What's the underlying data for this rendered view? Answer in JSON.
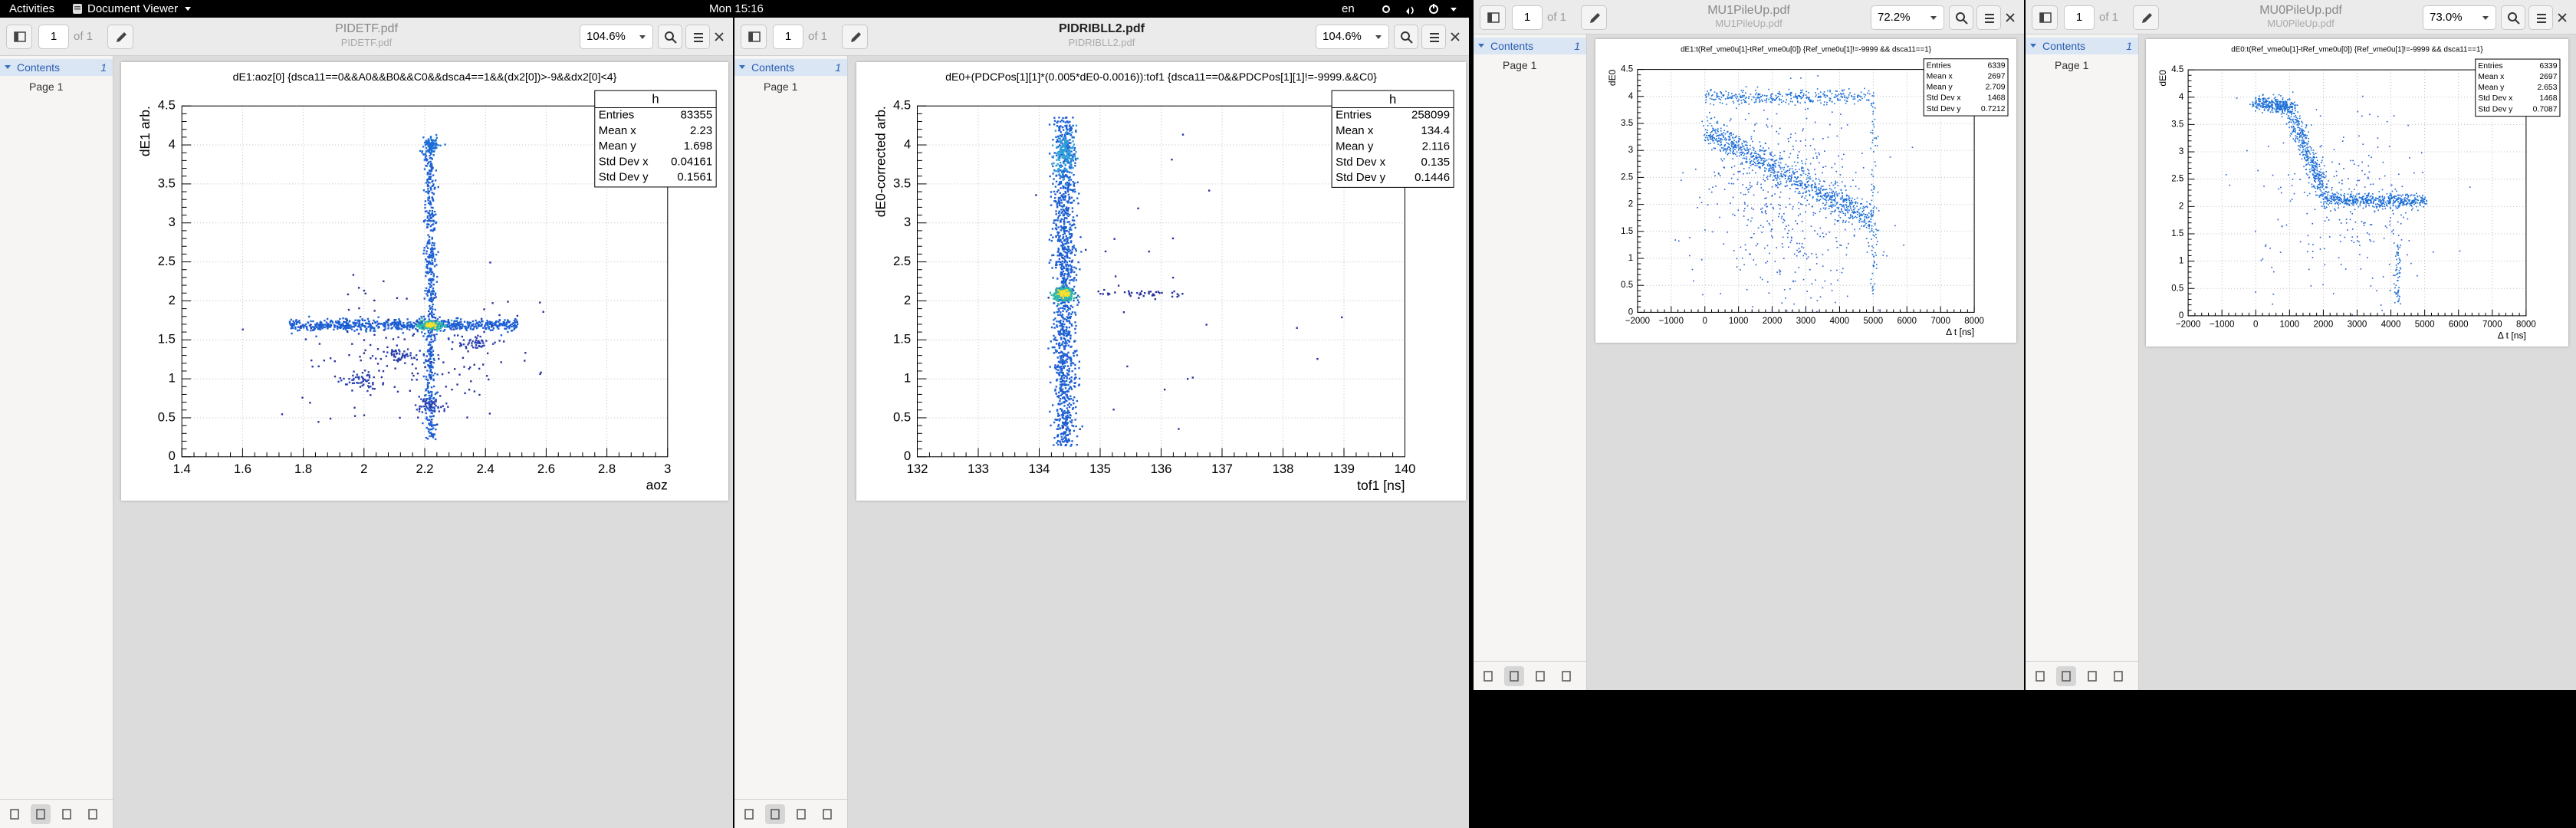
{
  "topbar": {
    "activities": "Activities",
    "app": "Document Viewer",
    "clock": "Mon 15:16",
    "lang": "en"
  },
  "windows": [
    {
      "title": "PIDETF.pdf",
      "subtitle": "PIDETF.pdf",
      "page": "1",
      "of": "of 1",
      "zoom": "104.6%",
      "contents": "Contents",
      "contents_num": "1",
      "page_item": "Page 1",
      "plot": {
        "title": "dE1:aoz[0] {dsca11==0&&A0&&B0&&C0&&dsca4==1&&(dx2[0])>-9&&dx2[0]<4}",
        "ylabel": "dE1 arb.",
        "xlabel": "aoz",
        "xticks": [
          "1.4",
          "1.6",
          "1.8",
          "2",
          "2.2",
          "2.4",
          "2.6",
          "2.8",
          "3"
        ],
        "yticks": [
          "0",
          "0.5",
          "1",
          "1.5",
          "2",
          "2.5",
          "3",
          "3.5",
          "4",
          "4.5"
        ],
        "stats": {
          "name": "h",
          "rows": [
            [
              "Entries",
              "83355"
            ],
            [
              "Mean x",
              "2.23"
            ],
            [
              "Mean y",
              "1.698"
            ],
            [
              "Std Dev x",
              "0.04161"
            ],
            [
              "Std Dev y",
              "0.1561"
            ]
          ]
        }
      }
    },
    {
      "title": "PIDRIBLL2.pdf",
      "subtitle": "PIDRIBLL2.pdf",
      "page": "1",
      "of": "of 1",
      "zoom": "104.6%",
      "contents": "Contents",
      "contents_num": "1",
      "page_item": "Page 1",
      "plot": {
        "title": "dE0+(PDCPos[1][1]*(0.005*dE0-0.0016)):tof1 {dsca11==0&&PDCPos[1][1]!=-9999.&&C0}",
        "ylabel": "dE0-corrected arb.",
        "xlabel": "tof1 [ns]",
        "xticks": [
          "132",
          "133",
          "134",
          "135",
          "136",
          "137",
          "138",
          "139",
          "140"
        ],
        "yticks": [
          "0",
          "0.5",
          "1",
          "1.5",
          "2",
          "2.5",
          "3",
          "3.5",
          "4",
          "4.5"
        ],
        "stats": {
          "name": "h",
          "rows": [
            [
              "Entries",
              "258099"
            ],
            [
              "Mean x",
              "134.4"
            ],
            [
              "Mean y",
              "2.116"
            ],
            [
              "Std Dev x",
              "0.135"
            ],
            [
              "Std Dev y",
              "0.1446"
            ]
          ]
        }
      }
    },
    {
      "title": "MU1PileUp.pdf",
      "subtitle": "MU1PileUp.pdf",
      "page": "1",
      "of": "of 1",
      "zoom": "72.2%",
      "contents": "Contents",
      "contents_num": "1",
      "page_item": "Page 1",
      "plot": {
        "title": "dE1:t(Ref_vme0u[1]-tRef_vme0u[0]) {Ref_vme0u[1]!=-9999 && dsca11==1}",
        "ylabel": "dE0",
        "xlabel": "Δ t [ns]",
        "xticks": [
          "−2000",
          "−1000",
          "0",
          "1000",
          "2000",
          "3000",
          "4000",
          "5000",
          "6000",
          "7000",
          "8000"
        ],
        "yticks": [
          "0",
          "0.5",
          "1",
          "1.5",
          "2",
          "2.5",
          "3",
          "3.5",
          "4",
          "4.5"
        ],
        "stats": {
          "rows": [
            [
              "Entries",
              "6339"
            ],
            [
              "Mean x",
              "2697"
            ],
            [
              "Mean y",
              "2.709"
            ],
            [
              "Std Dev x",
              "1468"
            ],
            [
              "Std Dev y",
              "0.7212"
            ]
          ]
        }
      }
    },
    {
      "title": "MU0PileUp.pdf",
      "subtitle": "MU0PileUp.pdf",
      "page": "1",
      "of": "of 1",
      "zoom": "73.0%",
      "contents": "Contents",
      "contents_num": "1",
      "page_item": "Page 1",
      "plot": {
        "title": "dE0:t(Ref_vme0u[1]-tRef_vme0u[0]) {Ref_vme0u[1]!=-9999 && dsca11==1}",
        "ylabel": "dE0",
        "xlabel": "Δ t [ns]",
        "xticks": [
          "−2000",
          "−1000",
          "0",
          "1000",
          "2000",
          "3000",
          "4000",
          "5000",
          "6000",
          "7000",
          "8000"
        ],
        "yticks": [
          "0",
          "0.5",
          "1",
          "1.5",
          "2",
          "2.5",
          "3",
          "3.5",
          "4",
          "4.5"
        ],
        "stats": {
          "rows": [
            [
              "Entries",
              "6339"
            ],
            [
              "Mean x",
              "2697"
            ],
            [
              "Mean y",
              "2.653"
            ],
            [
              "Std Dev x",
              "1468"
            ],
            [
              "Std Dev y",
              "0.7087"
            ]
          ]
        }
      }
    }
  ]
}
